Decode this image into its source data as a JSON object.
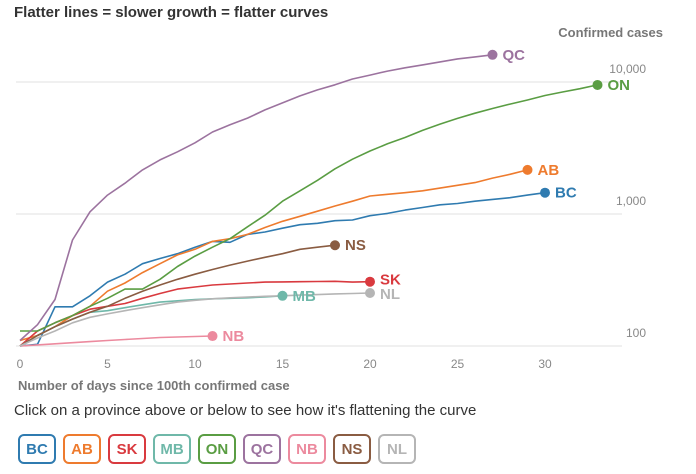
{
  "title": "Flatter lines = slower growth = flatter curves",
  "instructions": "Click on a province above or below to see how it's flattening the curve",
  "chart_data": {
    "type": "line",
    "title": "Flatter lines = slower growth = flatter curves",
    "xlabel": "Number of days since 100th confirmed case",
    "ylabel": "Confirmed cases",
    "y_scale": "log",
    "xlim": [
      0,
      35
    ],
    "ylim": [
      100,
      20000
    ],
    "x_ticks": [
      0,
      5,
      10,
      15,
      20,
      25,
      30
    ],
    "x_tick_labels": [
      "0",
      "5",
      "10",
      "15",
      "20",
      "25",
      "30"
    ],
    "y_ticks": [
      100,
      1000,
      10000
    ],
    "y_tick_labels": [
      "100",
      "1,000",
      "10,000"
    ],
    "grid": "horizontal",
    "legend_placement": "bottom",
    "series": [
      {
        "name": "BC",
        "color": "#2f7bb0",
        "values": [
          100,
          103,
          198,
          198,
          240,
          305,
          350,
          420,
          460,
          500,
          560,
          620,
          610,
          700,
          730,
          780,
          830,
          850,
          890,
          900,
          970,
          1010,
          1070,
          1120,
          1175,
          1200,
          1250,
          1290,
          1330,
          1390,
          1450
        ]
      },
      {
        "name": "AB",
        "color": "#ee7b2e",
        "values": [
          110,
          120,
          140,
          170,
          200,
          260,
          300,
          360,
          420,
          490,
          540,
          620,
          650,
          700,
          790,
          880,
          960,
          1050,
          1150,
          1250,
          1370,
          1410,
          1450,
          1500,
          1570,
          1650,
          1730,
          1870,
          2000,
          2160
        ]
      },
      {
        "name": "SK",
        "color": "#d93a3f",
        "values": [
          100,
          130,
          150,
          170,
          190,
          200,
          210,
          230,
          250,
          270,
          280,
          290,
          295,
          300,
          305,
          306,
          307,
          308,
          309,
          305,
          307
        ]
      },
      {
        "name": "MB",
        "color": "#6fb8a9",
        "values": [
          100,
          120,
          140,
          160,
          180,
          185,
          195,
          205,
          215,
          220,
          225,
          228,
          230,
          232,
          235,
          240
        ]
      },
      {
        "name": "ON",
        "color": "#5a9d43",
        "values": [
          130,
          130,
          150,
          170,
          200,
          230,
          270,
          270,
          320,
          400,
          480,
          560,
          650,
          800,
          980,
          1250,
          1500,
          1800,
          2200,
          2600,
          3000,
          3400,
          3800,
          4300,
          4800,
          5300,
          5800,
          6300,
          6800,
          7300,
          7900,
          8400,
          8900,
          9500
        ]
      },
      {
        "name": "QC",
        "color": "#9c739f",
        "values": [
          110,
          145,
          225,
          635,
          1040,
          1390,
          1710,
          2160,
          2570,
          2960,
          3460,
          4180,
          4740,
          5330,
          6150,
          6940,
          7850,
          8710,
          9530,
          10540,
          11280,
          12100,
          12800,
          13480,
          14200,
          14960,
          15500,
          16070
        ]
      },
      {
        "name": "NB",
        "color": "#ec8a9e",
        "values": [
          100,
          102,
          104,
          106,
          108,
          110,
          112,
          114,
          116,
          117,
          118,
          119
        ]
      },
      {
        "name": "NS",
        "color": "#8a5c42",
        "values": [
          100,
          120,
          140,
          160,
          180,
          200,
          230,
          260,
          290,
          320,
          350,
          380,
          410,
          440,
          470,
          500,
          540,
          560,
          580
        ]
      },
      {
        "name": "NL",
        "color": "#b5b5b5",
        "values": [
          100,
          115,
          130,
          150,
          165,
          175,
          185,
          195,
          205,
          215,
          222,
          228,
          232,
          235,
          238,
          240,
          243,
          245,
          248,
          250,
          252
        ]
      }
    ]
  },
  "legend": [
    {
      "label": "BC",
      "color": "#2f7bb0"
    },
    {
      "label": "AB",
      "color": "#ee7b2e"
    },
    {
      "label": "SK",
      "color": "#d93a3f"
    },
    {
      "label": "MB",
      "color": "#6fb8a9"
    },
    {
      "label": "ON",
      "color": "#5a9d43"
    },
    {
      "label": "QC",
      "color": "#9c739f"
    },
    {
      "label": "NB",
      "color": "#ec8a9e"
    },
    {
      "label": "NS",
      "color": "#8a5c42"
    },
    {
      "label": "NL",
      "color": "#b5b5b5"
    }
  ]
}
